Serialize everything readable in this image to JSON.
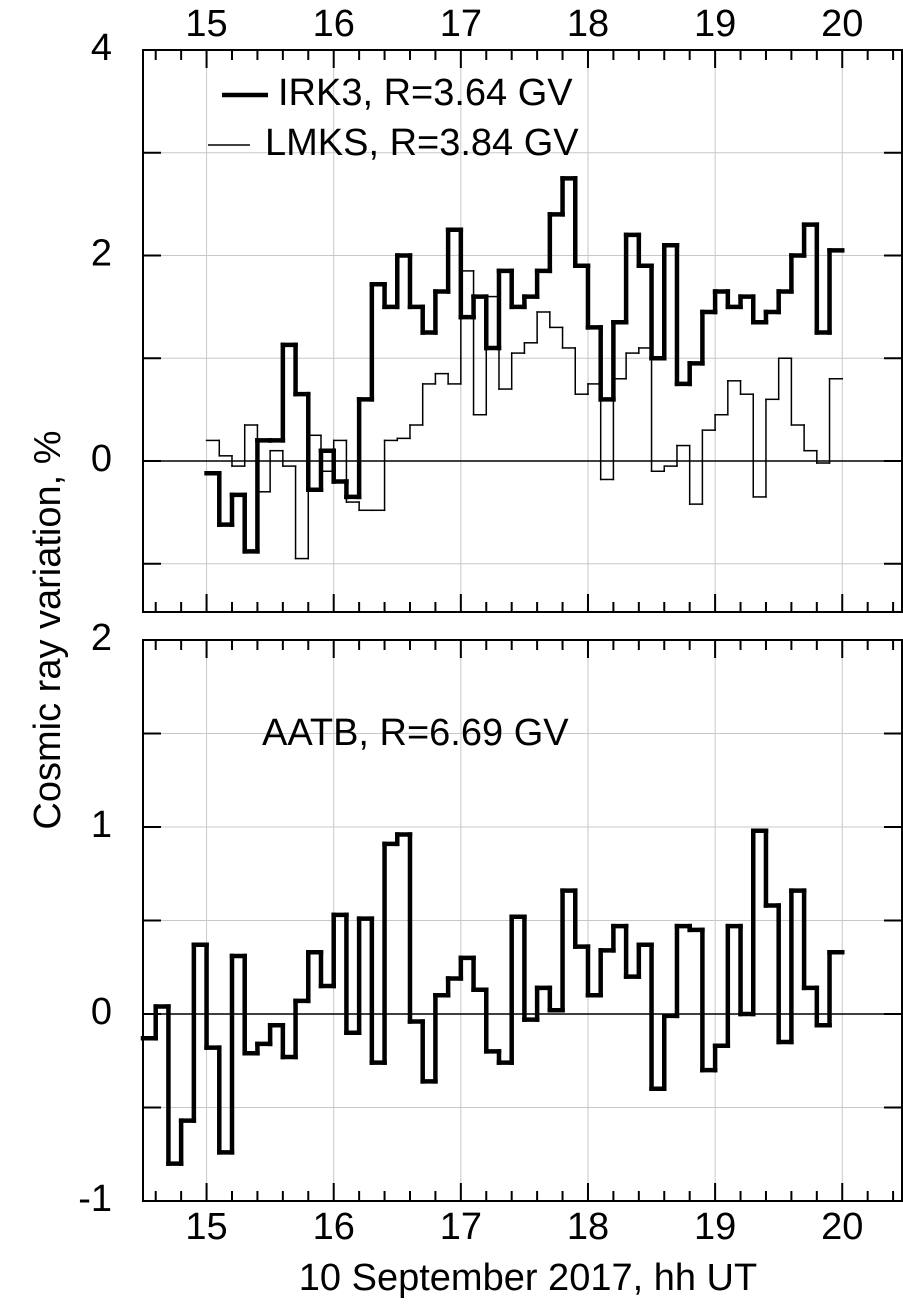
{
  "y_label": "Cosmic ray variation, %",
  "x_label": "10 September 2017, hh UT",
  "chart_data": [
    {
      "type": "step",
      "legend": "upper left",
      "xtick_side": "top",
      "xlim": [
        14.5,
        20.47
      ],
      "ylim": [
        -1.47,
        4
      ],
      "xticks": [
        15,
        16,
        17,
        18,
        19,
        20
      ],
      "x_minor_ticks": [
        14.6,
        14.8,
        15.2,
        15.4,
        15.6,
        15.8,
        16.2,
        16.4,
        16.6,
        16.8,
        17.2,
        17.4,
        17.6,
        17.8,
        18.2,
        18.4,
        18.6,
        18.8,
        19.2,
        19.4,
        19.6,
        19.8,
        20.2,
        20.4
      ],
      "yticks": [
        0,
        2,
        4
      ],
      "y_minor_ticks": [
        -1,
        1,
        3
      ],
      "grid": true,
      "x": [
        15.0,
        15.1,
        15.2,
        15.3,
        15.4,
        15.5,
        15.6,
        15.7,
        15.8,
        15.9,
        16.0,
        16.1,
        16.2,
        16.3,
        16.4,
        16.5,
        16.6,
        16.7,
        16.8,
        16.9,
        17.0,
        17.1,
        17.2,
        17.3,
        17.4,
        17.5,
        17.6,
        17.7,
        17.8,
        17.9,
        18.0,
        18.1,
        18.2,
        18.3,
        18.4,
        18.5,
        18.6,
        18.7,
        18.8,
        18.9,
        19.0,
        19.1,
        19.2,
        19.3,
        19.4,
        19.5,
        19.6,
        19.7,
        19.8,
        19.9
      ],
      "series": [
        {
          "name": "IRK3, R=3.64 GV",
          "color": "#000000",
          "width": 4.5,
          "values": [
            -0.12,
            -0.62,
            -0.33,
            -0.88,
            0.2,
            0.2,
            1.13,
            0.65,
            -0.28,
            0.1,
            -0.2,
            -0.35,
            0.6,
            1.72,
            1.5,
            2.0,
            1.5,
            1.25,
            1.65,
            2.25,
            1.4,
            1.6,
            1.1,
            1.85,
            1.5,
            1.6,
            1.85,
            2.4,
            2.75,
            1.9,
            1.3,
            0.6,
            1.35,
            2.2,
            1.9,
            1.0,
            2.1,
            0.75,
            0.95,
            1.45,
            1.65,
            1.5,
            1.6,
            1.35,
            1.45,
            1.65,
            2.0,
            2.3,
            1.25,
            2.05
          ]
        },
        {
          "name": "LMKS, R=3.84 GV",
          "color": "#000000",
          "width": 1.5,
          "values": [
            0.2,
            0.05,
            -0.05,
            0.35,
            -0.3,
            0.1,
            -0.05,
            -0.95,
            0.25,
            -0.1,
            0.2,
            -0.4,
            -0.48,
            -0.48,
            0.2,
            0.22,
            0.35,
            0.75,
            0.85,
            0.75,
            1.85,
            0.45,
            1.6,
            0.7,
            1.05,
            1.15,
            1.45,
            1.3,
            1.1,
            0.65,
            0.75,
            -0.18,
            0.8,
            1.05,
            1.1,
            -0.1,
            -0.05,
            0.15,
            -0.42,
            0.3,
            0.45,
            0.78,
            0.65,
            -0.35,
            0.6,
            1.0,
            0.35,
            0.1,
            -0.02,
            0.8
          ]
        }
      ]
    },
    {
      "type": "step",
      "legend": "annotation",
      "xtick_side": "bottom",
      "xlim": [
        14.5,
        20.47
      ],
      "ylim": [
        -1,
        2
      ],
      "xticks": [
        15,
        16,
        17,
        18,
        19,
        20
      ],
      "x_minor_ticks": [
        14.6,
        14.8,
        15.2,
        15.4,
        15.6,
        15.8,
        16.2,
        16.4,
        16.6,
        16.8,
        17.2,
        17.4,
        17.6,
        17.8,
        18.2,
        18.4,
        18.6,
        18.8,
        19.2,
        19.4,
        19.6,
        19.8,
        20.2,
        20.4
      ],
      "yticks": [
        -1,
        0,
        1,
        2
      ],
      "y_minor_ticks": [
        -0.5,
        0.5,
        1.5
      ],
      "grid": true,
      "x": [
        14.5,
        14.6,
        14.7,
        14.8,
        14.9,
        15.0,
        15.1,
        15.2,
        15.3,
        15.4,
        15.5,
        15.6,
        15.7,
        15.8,
        15.9,
        16.0,
        16.1,
        16.2,
        16.3,
        16.4,
        16.5,
        16.6,
        16.7,
        16.8,
        16.9,
        17.0,
        17.1,
        17.2,
        17.3,
        17.4,
        17.5,
        17.6,
        17.7,
        17.8,
        17.9,
        18.0,
        18.1,
        18.2,
        18.3,
        18.4,
        18.5,
        18.6,
        18.7,
        18.8,
        18.9,
        19.0,
        19.1,
        19.2,
        19.3,
        19.4,
        19.5,
        19.6,
        19.7,
        19.8,
        19.9
      ],
      "series": [
        {
          "name": "AATB, R=6.69 GV",
          "color": "#000000",
          "width": 4.5,
          "values": [
            -0.13,
            0.04,
            -0.8,
            -0.57,
            0.37,
            -0.18,
            -0.74,
            0.31,
            -0.21,
            -0.16,
            -0.06,
            -0.23,
            0.07,
            0.33,
            0.15,
            0.53,
            -0.1,
            0.51,
            -0.26,
            0.91,
            0.96,
            -0.04,
            -0.36,
            0.1,
            0.19,
            0.3,
            0.13,
            -0.2,
            -0.26,
            0.52,
            -0.03,
            0.14,
            0.02,
            0.66,
            0.36,
            0.1,
            0.34,
            0.47,
            0.2,
            0.37,
            -0.4,
            -0.01,
            0.47,
            0.45,
            -0.3,
            -0.17,
            0.47,
            0.0,
            0.98,
            0.58,
            -0.15,
            0.66,
            0.14,
            -0.06,
            0.33
          ]
        }
      ]
    }
  ]
}
